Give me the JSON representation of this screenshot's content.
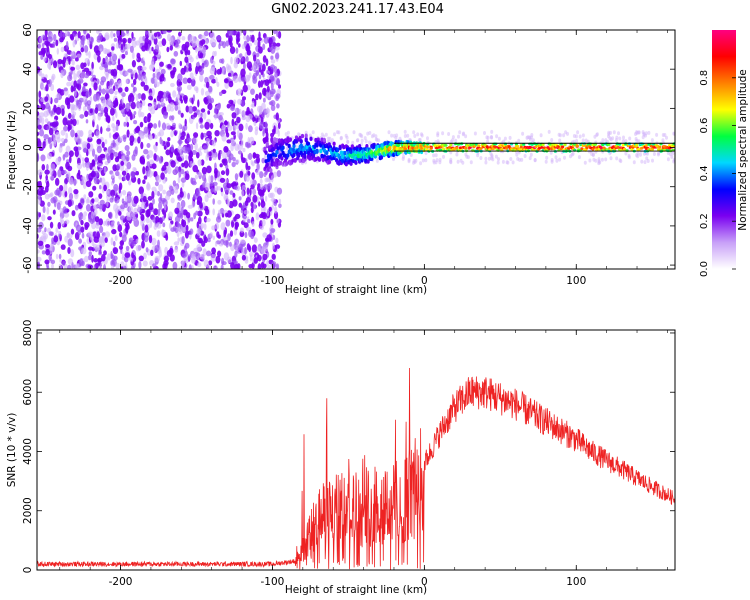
{
  "title": "GN02.2023.241.17.43.E04",
  "colors": {
    "series": "#ee2222",
    "axis": "#000000",
    "purple": "#7a00f0"
  },
  "colorbar": {
    "label": "Normalized spectral amplitude",
    "ticks": [
      "0.0",
      "0.2",
      "0.4",
      "0.6",
      "0.8"
    ],
    "tick_values": [
      0.0,
      0.2,
      0.4,
      0.6,
      0.8
    ],
    "range": [
      0,
      1
    ],
    "colormap": [
      "#ffffff",
      "#c8a0f8",
      "#7a00f0",
      "#0000ff",
      "#00d8ff",
      "#00ff40",
      "#ffff00",
      "#ff8000",
      "#ff0000",
      "#ff0080"
    ]
  },
  "chart_data": [
    {
      "type": "heatmap",
      "xlabel": "Height of straight line (km)",
      "ylabel": "Frequency (Hz)",
      "xlim": [
        -255,
        165
      ],
      "ylim": [
        -62,
        60
      ],
      "xticks": [
        -200,
        -100,
        0,
        100
      ],
      "xtick_labels": [
        "-200",
        "-100",
        "0",
        "100"
      ],
      "yticks": [
        -60,
        -40,
        -20,
        0,
        20,
        40,
        60
      ],
      "ytick_labels": [
        "-60",
        "-40",
        "-20",
        "0",
        "20",
        "40",
        "60"
      ],
      "noise_region_x": [
        -255,
        -95
      ],
      "signal_band": {
        "x": [
          -105,
          -95,
          -85,
          -75,
          -65,
          -55,
          -45,
          -35,
          -25,
          -15,
          -5,
          5,
          20,
          40,
          60,
          80,
          100,
          120,
          140,
          165
        ],
        "center_hz": [
          -6,
          -2,
          -1,
          0,
          -2,
          -4,
          -4,
          -3,
          -1,
          0,
          0,
          0,
          0,
          0,
          0,
          0,
          0,
          0,
          0,
          0
        ],
        "amplitude": [
          0.35,
          0.4,
          0.45,
          0.45,
          0.45,
          0.5,
          0.55,
          0.6,
          0.75,
          0.85,
          0.9,
          0.92,
          0.95,
          0.95,
          0.95,
          0.95,
          0.95,
          0.95,
          0.95,
          0.95
        ]
      }
    },
    {
      "type": "line",
      "xlabel": "Height of straight line (km)",
      "ylabel": "SNR (10 * v/v)",
      "xlim": [
        -255,
        165
      ],
      "ylim": [
        0,
        8100
      ],
      "xticks": [
        -200,
        -100,
        0,
        100
      ],
      "xtick_labels": [
        "-200",
        "-100",
        "0",
        "100"
      ],
      "yticks": [
        0,
        2000,
        4000,
        6000,
        8000
      ],
      "ytick_labels": [
        "0",
        "2000",
        "4000",
        "6000",
        "8000"
      ],
      "series": [
        {
          "x": [
            -255,
            -200,
            -150,
            -100,
            -85,
            -80,
            -70,
            -60,
            -50,
            -40,
            -30,
            -20,
            -10,
            0,
            10,
            20,
            30,
            40,
            50,
            60,
            70,
            80,
            90,
            100,
            110,
            120,
            130,
            140,
            150,
            165
          ],
          "values": [
            200,
            200,
            200,
            200,
            300,
            800,
            2000,
            2300,
            2400,
            2500,
            2700,
            2600,
            3000,
            3600,
            4600,
            5500,
            6000,
            6000,
            5800,
            5600,
            5300,
            5000,
            4700,
            4400,
            4000,
            3700,
            3400,
            3100,
            2800,
            2400
          ]
        }
      ]
    }
  ]
}
